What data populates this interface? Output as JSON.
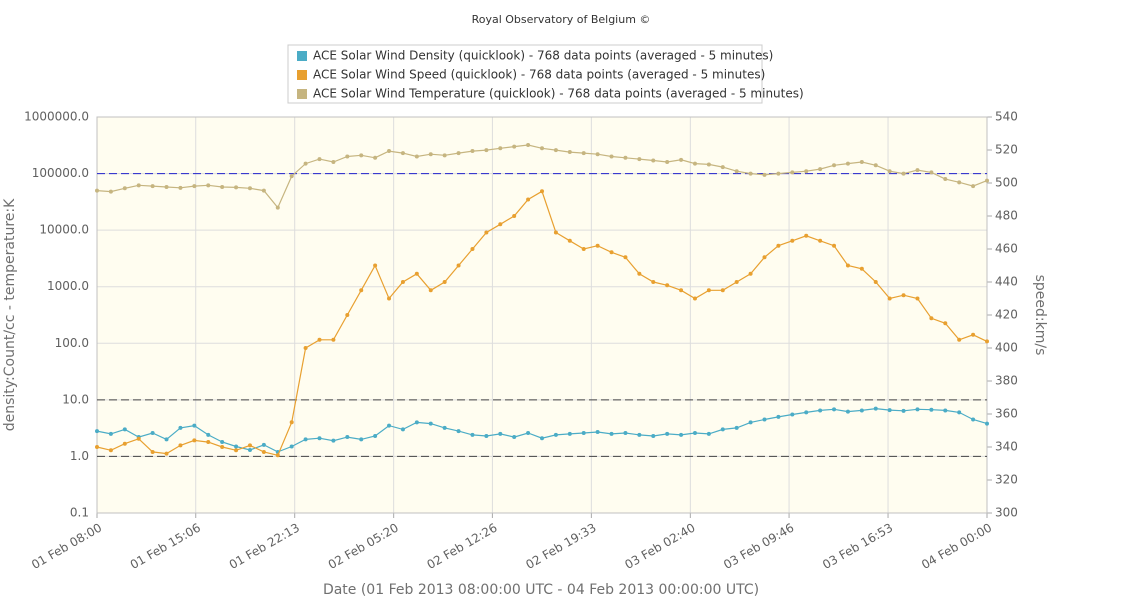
{
  "chart_data": {
    "type": "line",
    "title": "Royal Observatory of Belgium ©",
    "x_label": "Date (01 Feb 2013 08:00:00 UTC - 04 Feb 2013 00:00:00 UTC)",
    "y_label": "density:Count/cc - temperature:K",
    "y2_label": "speed:km/s",
    "ylog": true,
    "grid": true,
    "x": [
      "01 Feb 08:00",
      "01 Feb 09:00",
      "01 Feb 10:00",
      "01 Feb 11:00",
      "01 Feb 12:00",
      "01 Feb 13:00",
      "01 Feb 14:00",
      "01 Feb 15:00",
      "01 Feb 16:00",
      "01 Feb 17:00",
      "01 Feb 18:00",
      "01 Feb 19:00",
      "01 Feb 20:00",
      "01 Feb 21:00",
      "01 Feb 22:00",
      "01 Feb 23:00",
      "02 Feb 00:00",
      "02 Feb 01:00",
      "02 Feb 02:00",
      "02 Feb 03:00",
      "02 Feb 04:00",
      "02 Feb 05:00",
      "02 Feb 06:00",
      "02 Feb 07:00",
      "02 Feb 08:00",
      "02 Feb 09:00",
      "02 Feb 10:00",
      "02 Feb 11:00",
      "02 Feb 12:00",
      "02 Feb 13:00",
      "02 Feb 14:00",
      "02 Feb 15:00",
      "02 Feb 16:00",
      "02 Feb 17:00",
      "02 Feb 18:00",
      "02 Feb 19:00",
      "02 Feb 20:00",
      "02 Feb 21:00",
      "02 Feb 22:00",
      "02 Feb 23:00",
      "03 Feb 00:00",
      "03 Feb 01:00",
      "03 Feb 02:00",
      "03 Feb 03:00",
      "03 Feb 04:00",
      "03 Feb 05:00",
      "03 Feb 06:00",
      "03 Feb 07:00",
      "03 Feb 08:00",
      "03 Feb 09:00",
      "03 Feb 10:00",
      "03 Feb 11:00",
      "03 Feb 12:00",
      "03 Feb 13:00",
      "03 Feb 14:00",
      "03 Feb 15:00",
      "03 Feb 16:00",
      "03 Feb 17:00",
      "03 Feb 18:00",
      "03 Feb 19:00",
      "03 Feb 20:00",
      "03 Feb 21:00",
      "03 Feb 22:00",
      "03 Feb 23:00",
      "04 Feb 00:00"
    ],
    "xlim": [
      "01 Feb 08:00",
      "04 Feb 00:00"
    ],
    "xticks": [
      "01 Feb 08:00",
      "01 Feb 15:06",
      "01 Feb 22:13",
      "02 Feb 05:20",
      "02 Feb 12:26",
      "02 Feb 19:33",
      "03 Feb 02:40",
      "03 Feb 09:46",
      "03 Feb 16:53",
      "04 Feb 00:00"
    ],
    "ylim": [
      0.1,
      1000000
    ],
    "yticks": [
      0.1,
      {
        "value": 1,
        "label": "1.0"
      },
      {
        "value": 10,
        "label": "10.0"
      },
      {
        "value": 100,
        "label": "100.0"
      },
      {
        "value": 1000,
        "label": "1000.0"
      },
      {
        "value": 10000,
        "label": "10000.0"
      },
      {
        "value": 100000,
        "label": "100000.0"
      },
      {
        "value": 1000000,
        "label": "1000000.0"
      }
    ],
    "y2lim": [
      300,
      540
    ],
    "y2ticks": [
      300,
      320,
      340,
      360,
      380,
      400,
      420,
      440,
      460,
      480,
      500,
      520,
      540
    ],
    "hlines": [
      {
        "value": 100000,
        "color": "#2222cc"
      },
      {
        "value": 10,
        "color": "#444444"
      },
      {
        "value": 1,
        "color": "#444444"
      }
    ],
    "series": [
      {
        "name": "ACE Solar Wind Density (quicklook) - 768 data points (averaged - 5 minutes)",
        "color": "#4bacc6",
        "values": [
          2.8,
          2.5,
          3.0,
          2.2,
          2.6,
          2.0,
          3.2,
          3.5,
          2.4,
          1.8,
          1.5,
          1.3,
          1.6,
          1.2,
          1.5,
          2.0,
          2.1,
          1.9,
          2.2,
          2.0,
          2.3,
          3.5,
          3.0,
          4.0,
          3.8,
          3.2,
          2.8,
          2.4,
          2.3,
          2.5,
          2.2,
          2.6,
          2.1,
          2.4,
          2.5,
          2.6,
          2.7,
          2.5,
          2.6,
          2.4,
          2.3,
          2.5,
          2.4,
          2.6,
          2.5,
          3.0,
          3.2,
          4.0,
          4.5,
          5.0,
          5.5,
          6.0,
          6.5,
          6.8,
          6.2,
          6.5,
          7.0,
          6.6,
          6.4,
          6.8,
          6.7,
          6.5,
          6.0,
          4.5,
          3.8
        ]
      },
      {
        "name": "ACE Solar Wind Speed (quicklook) - 768 data points (averaged - 5 minutes)",
        "color": "#e8a030",
        "axis": "y2",
        "values": [
          340,
          338,
          342,
          345,
          337,
          336,
          341,
          344,
          343,
          340,
          338,
          341,
          337,
          335,
          355,
          400,
          405,
          405,
          420,
          435,
          450,
          430,
          440,
          445,
          435,
          440,
          450,
          460,
          470,
          475,
          480,
          490,
          495,
          470,
          465,
          460,
          462,
          458,
          455,
          445,
          440,
          438,
          435,
          430,
          435,
          435,
          440,
          445,
          455,
          462,
          465,
          468,
          465,
          462,
          450,
          448,
          440,
          430,
          432,
          430,
          418,
          415,
          405,
          408,
          404
        ]
      },
      {
        "name": "ACE Solar Wind Temperature (quicklook) - 768 data points (averaged - 5 minutes)",
        "color": "#c6b580",
        "values": [
          50000,
          48000,
          55000,
          62000,
          60000,
          58000,
          56000,
          60000,
          62000,
          58000,
          57000,
          55000,
          50000,
          25000,
          90000,
          150000,
          180000,
          160000,
          200000,
          210000,
          190000,
          250000,
          230000,
          200000,
          220000,
          210000,
          230000,
          250000,
          260000,
          280000,
          300000,
          320000,
          280000,
          260000,
          240000,
          230000,
          220000,
          200000,
          190000,
          180000,
          170000,
          160000,
          175000,
          150000,
          145000,
          130000,
          110000,
          100000,
          95000,
          100000,
          105000,
          110000,
          120000,
          140000,
          150000,
          160000,
          140000,
          110000,
          100000,
          115000,
          105000,
          80000,
          70000,
          60000,
          75000
        ]
      }
    ]
  }
}
